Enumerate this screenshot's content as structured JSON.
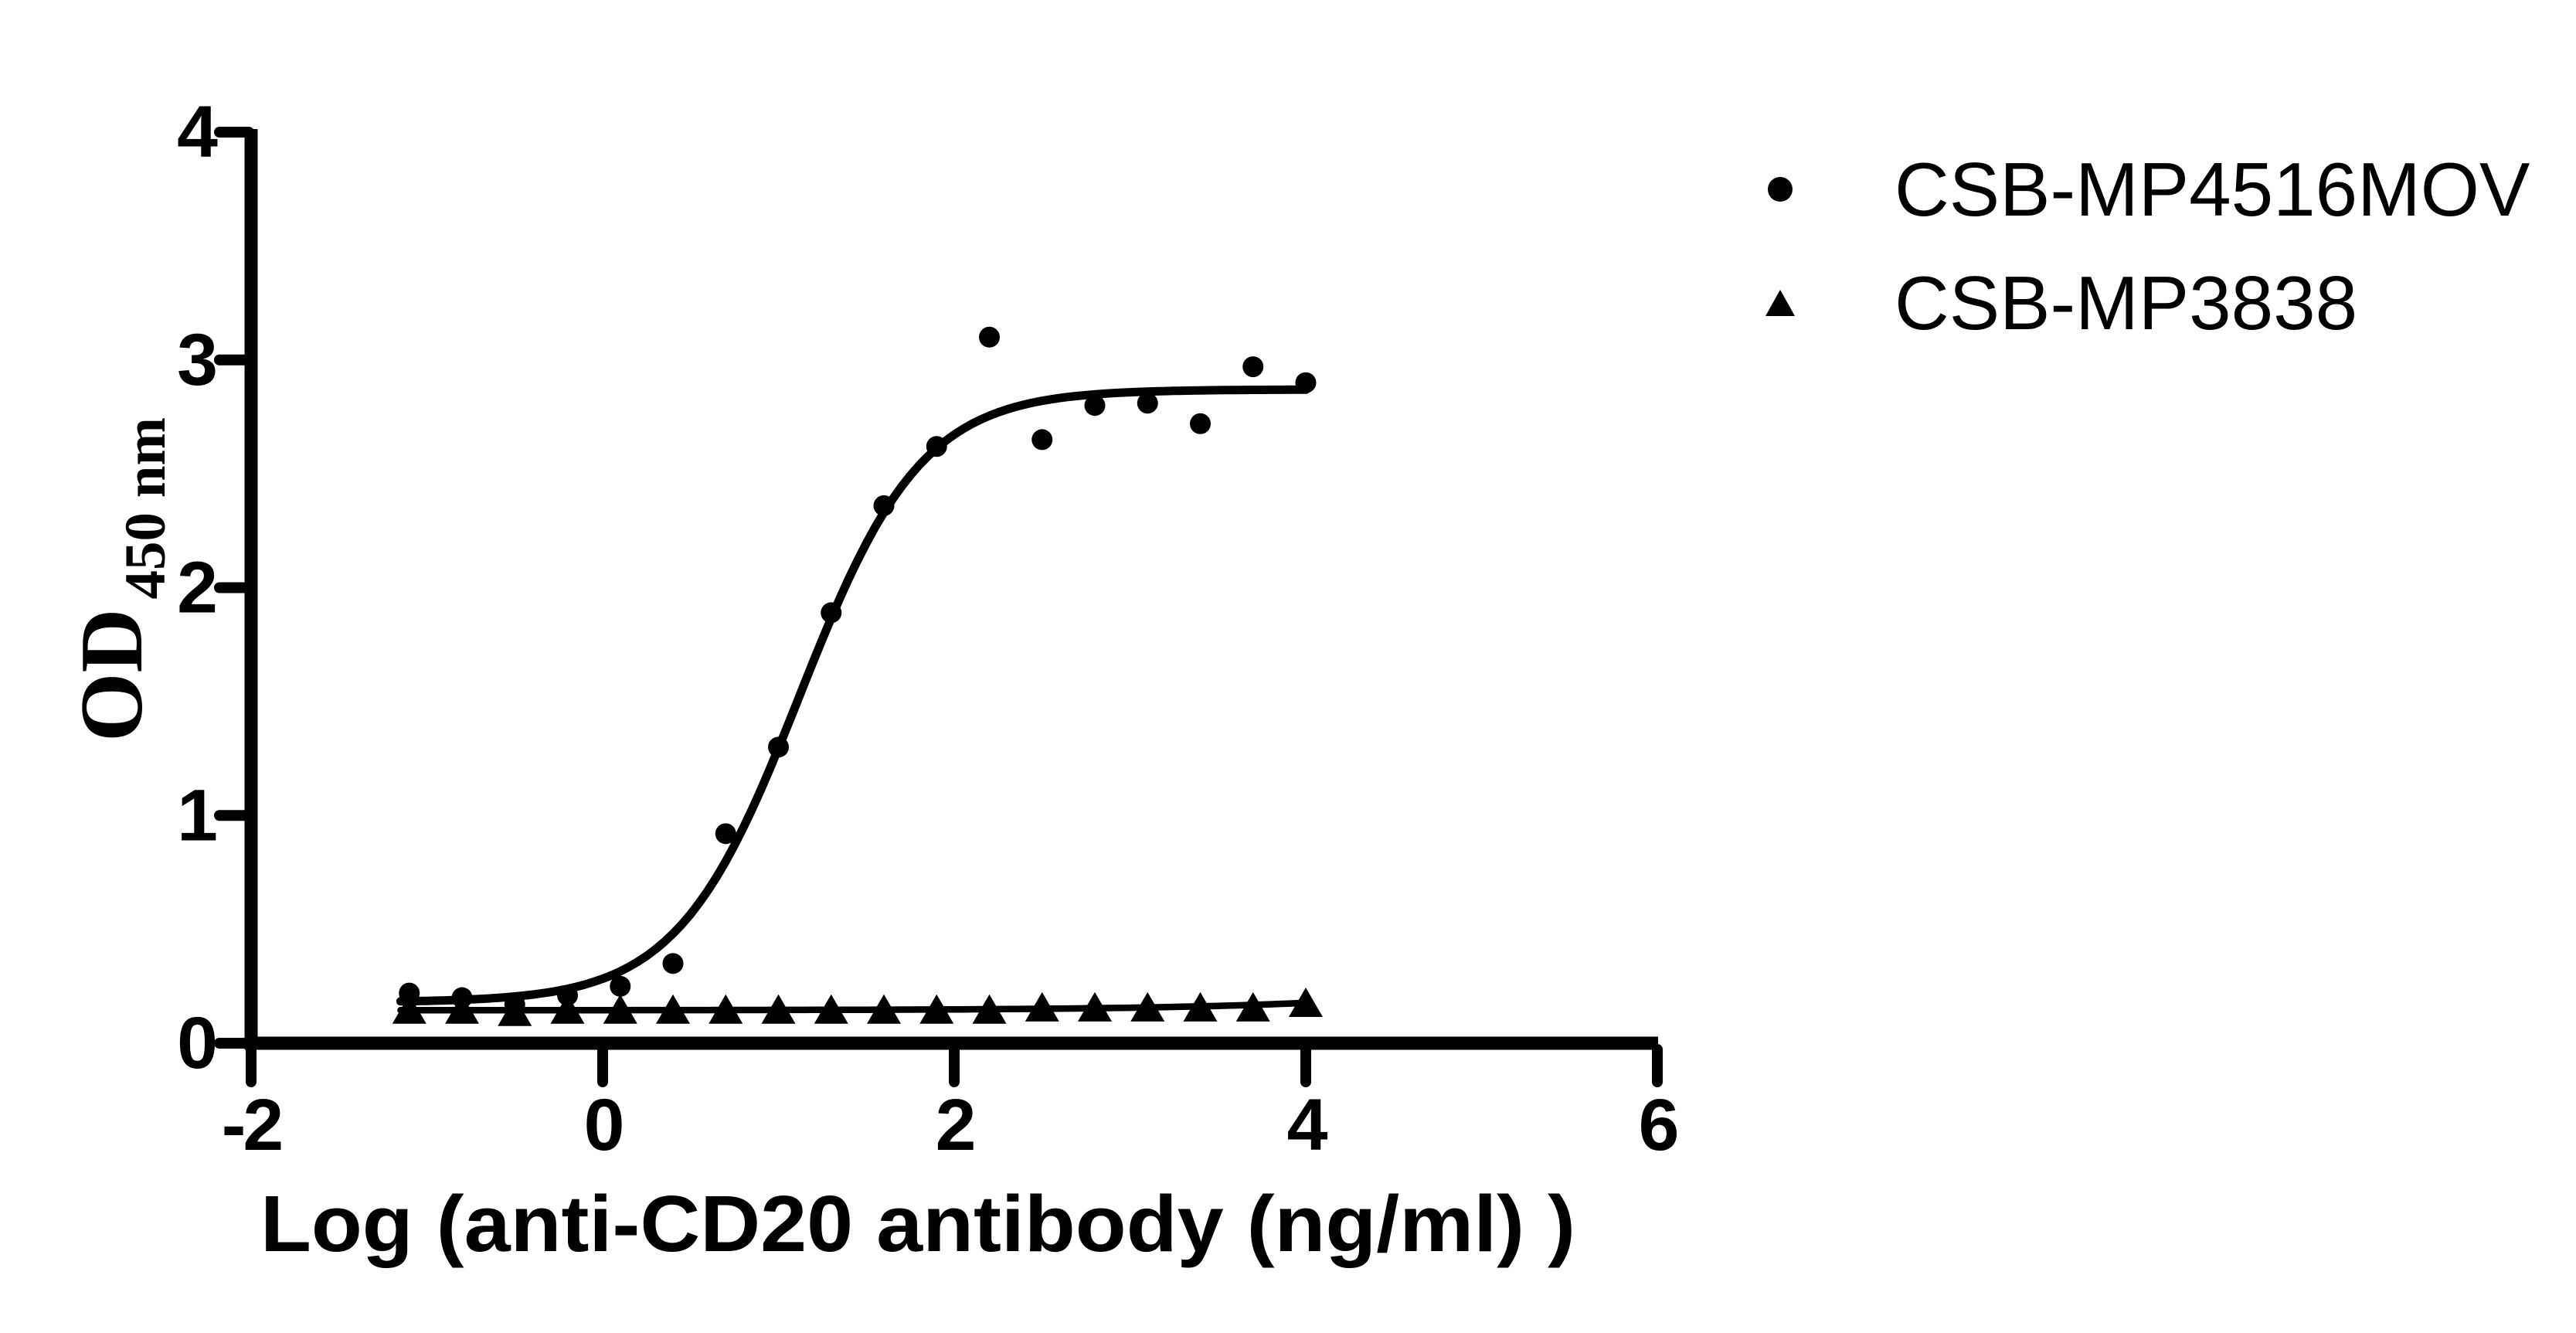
{
  "page": {
    "background_color": "#ffffff",
    "foreground_color": "#000000"
  },
  "chart_data": {
    "type": "scatter",
    "title": "",
    "xlabel": "Log（anti-CD20 antibody（ng/ml） ）",
    "ylabel_main": "OD",
    "ylabel_subscript": "450 nm",
    "xlim": [
      -2,
      6
    ],
    "ylim": [
      0,
      4
    ],
    "x_ticks": [
      "-2",
      "0",
      "2",
      "4",
      "6"
    ],
    "y_ticks": [
      "0",
      "1",
      "2",
      "3",
      "4"
    ],
    "grid": false,
    "legend_position": "top-right",
    "x": [
      -1.1,
      -0.8,
      -0.5,
      -0.2,
      0.1,
      0.4,
      0.7,
      1.0,
      1.3,
      1.6,
      1.9,
      2.2,
      2.5,
      2.8,
      3.1,
      3.4,
      3.7,
      4.0
    ],
    "series": [
      {
        "name": "CSB-MP4516MOV",
        "marker": "circle",
        "color": "#000000",
        "values": [
          0.22,
          0.2,
          0.17,
          0.21,
          0.25,
          0.35,
          0.92,
          1.3,
          1.89,
          2.36,
          2.62,
          3.1,
          2.65,
          2.8,
          2.81,
          2.72,
          2.97,
          2.9
        ],
        "fit_curve": {
          "model": "4PL sigmoid",
          "bottom": 0.18,
          "top": 2.87,
          "log_ec50": 1.12,
          "hill_slope": 1.25
        }
      },
      {
        "name": "CSB-MP3838",
        "marker": "triangle",
        "color": "#000000",
        "values": [
          0.15,
          0.15,
          0.14,
          0.15,
          0.15,
          0.15,
          0.15,
          0.15,
          0.15,
          0.15,
          0.15,
          0.15,
          0.16,
          0.16,
          0.16,
          0.16,
          0.16,
          0.18
        ],
        "fit_curve": {
          "model": "4PL sigmoid",
          "bottom": 0.145,
          "top": 0.5,
          "log_ec50": 6.0,
          "hill_slope": 0.5
        }
      }
    ]
  }
}
